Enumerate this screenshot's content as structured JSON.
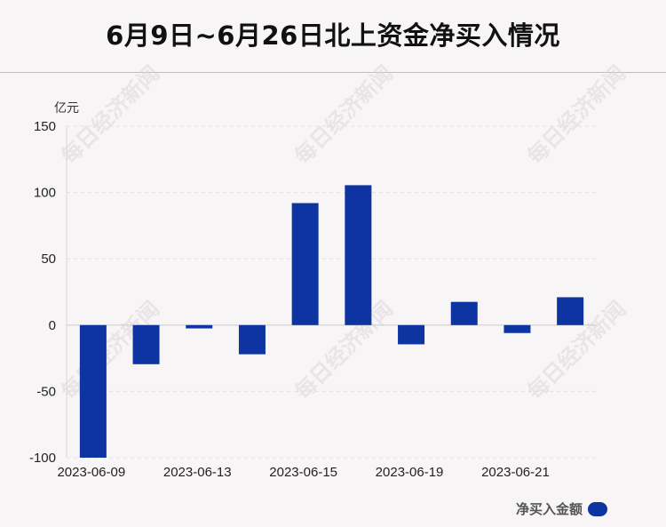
{
  "title": "6月9日~6月26日北上资金净买入情况",
  "watermark": "每日经济新闻",
  "chart_data": {
    "type": "bar",
    "title": "6月9日~6月26日北上资金净买入情况",
    "unit_label": "亿元",
    "categories": [
      "2023-06-09",
      "2023-06-12",
      "2023-06-13",
      "2023-06-14",
      "2023-06-15",
      "2023-06-16",
      "2023-06-19",
      "2023-06-20",
      "2023-06-21",
      "2023-06-26"
    ],
    "x_tick_labels": [
      "2023-06-09",
      "2023-06-13",
      "2023-06-15",
      "2023-06-19",
      "2023-06-21"
    ],
    "series": [
      {
        "name": "净买入金额",
        "color": "#0d34a0",
        "values": [
          -100.0,
          -29.5,
          -2.5,
          -22.0,
          92.0,
          105.5,
          -14.5,
          17.5,
          -6.0,
          21.0
        ]
      }
    ],
    "yticks": [
      150,
      100,
      50,
      0,
      -50,
      -100
    ],
    "ylim": [
      -100,
      150
    ],
    "grid": true,
    "legend": "bottom-right"
  }
}
